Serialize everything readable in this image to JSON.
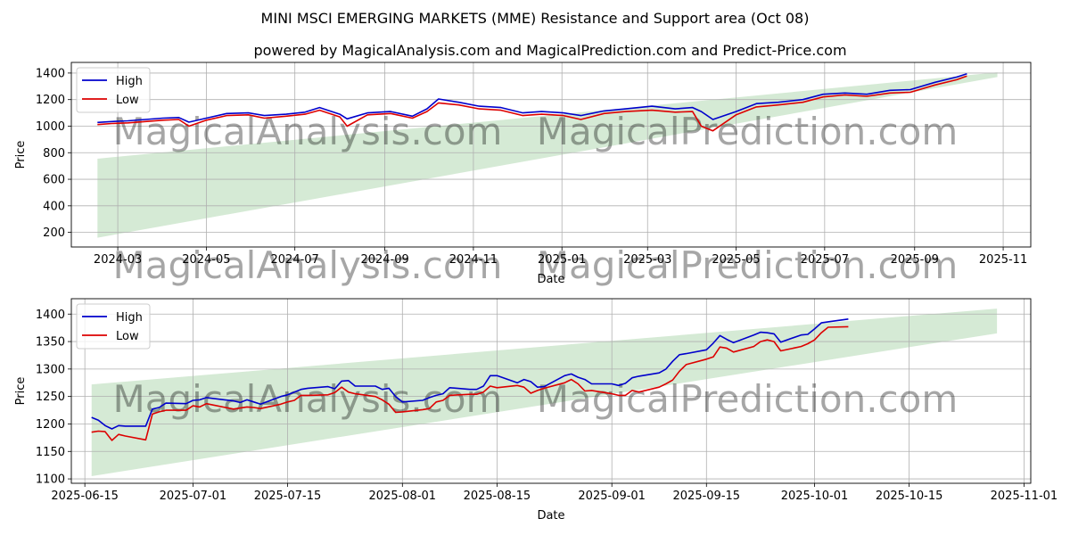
{
  "title": "MINI MSCI EMERGING MARKETS (MME) Resistance and Support area (Oct 08)",
  "subtitle": "powered by MagicalAnalysis.com and MagicalPrediction.com and Predict-Price.com",
  "watermarks": [
    "MagicalAnalysis.com",
    "MagicalPrediction.com"
  ],
  "colors": {
    "high": "#0000cc",
    "low": "#dd0000",
    "band": "#d5ead5"
  },
  "chart_data": [
    {
      "type": "line",
      "xlabel": "Date",
      "ylabel": "Price",
      "xlim": [
        "2024-01-29",
        "2025-11-20"
      ],
      "ylim": [
        90,
        1480
      ],
      "xticks": [
        {
          "date": "2024-03-01",
          "label": "2024-03"
        },
        {
          "date": "2024-05-01",
          "label": "2024-05"
        },
        {
          "date": "2024-07-01",
          "label": "2024-07"
        },
        {
          "date": "2024-09-01",
          "label": "2024-09"
        },
        {
          "date": "2024-11-01",
          "label": "2024-11"
        },
        {
          "date": "2025-01-01",
          "label": "2025-01"
        },
        {
          "date": "2025-03-01",
          "label": "2025-03"
        },
        {
          "date": "2025-05-01",
          "label": "2025-05"
        },
        {
          "date": "2025-07-01",
          "label": "2025-07"
        },
        {
          "date": "2025-09-01",
          "label": "2025-09"
        },
        {
          "date": "2025-11-01",
          "label": "2025-11"
        }
      ],
      "yticks": [
        200,
        400,
        600,
        800,
        1000,
        1200,
        1400
      ],
      "grid": true,
      "legend": "upper left",
      "band": {
        "x": [
          "2024-02-16",
          "2025-10-28"
        ],
        "lower": [
          160,
          1370
        ],
        "upper": [
          755,
          1405
        ]
      },
      "series": [
        {
          "name": "High",
          "color": "#0000cc",
          "x": [
            "2024-02-16",
            "2024-02-26",
            "2024-03-08",
            "2024-03-20",
            "2024-04-01",
            "2024-04-12",
            "2024-04-19",
            "2024-05-01",
            "2024-05-15",
            "2024-05-30",
            "2024-06-10",
            "2024-06-25",
            "2024-07-08",
            "2024-07-18",
            "2024-08-01",
            "2024-08-06",
            "2024-08-20",
            "2024-09-05",
            "2024-09-20",
            "2024-09-30",
            "2024-10-08",
            "2024-10-22",
            "2024-11-05",
            "2024-11-20",
            "2024-12-05",
            "2024-12-18",
            "2025-01-02",
            "2025-01-14",
            "2025-01-30",
            "2025-02-14",
            "2025-03-04",
            "2025-03-20",
            "2025-04-01",
            "2025-04-07",
            "2025-04-15",
            "2025-05-01",
            "2025-05-15",
            "2025-05-30",
            "2025-06-16",
            "2025-06-30",
            "2025-07-15",
            "2025-07-30",
            "2025-08-15",
            "2025-08-29",
            "2025-09-15",
            "2025-09-30",
            "2025-10-07"
          ],
          "values": [
            1028,
            1035,
            1040,
            1050,
            1060,
            1065,
            1030,
            1060,
            1095,
            1100,
            1080,
            1090,
            1105,
            1140,
            1090,
            1055,
            1100,
            1110,
            1075,
            1130,
            1205,
            1180,
            1150,
            1140,
            1100,
            1110,
            1100,
            1080,
            1115,
            1130,
            1150,
            1130,
            1140,
            1110,
            1050,
            1110,
            1170,
            1180,
            1200,
            1240,
            1250,
            1240,
            1270,
            1275,
            1330,
            1370,
            1395
          ]
        },
        {
          "name": "Low",
          "color": "#dd0000",
          "x": [
            "2024-02-16",
            "2024-02-26",
            "2024-03-08",
            "2024-03-20",
            "2024-04-01",
            "2024-04-12",
            "2024-04-19",
            "2024-05-01",
            "2024-05-15",
            "2024-05-30",
            "2024-06-10",
            "2024-06-25",
            "2024-07-08",
            "2024-07-18",
            "2024-08-01",
            "2024-08-06",
            "2024-08-20",
            "2024-09-05",
            "2024-09-20",
            "2024-09-30",
            "2024-10-08",
            "2024-10-22",
            "2024-11-05",
            "2024-11-20",
            "2024-12-05",
            "2024-12-18",
            "2025-01-02",
            "2025-01-14",
            "2025-01-30",
            "2025-02-14",
            "2025-03-04",
            "2025-03-20",
            "2025-04-01",
            "2025-04-07",
            "2025-04-15",
            "2025-05-01",
            "2025-05-15",
            "2025-05-30",
            "2025-06-16",
            "2025-06-30",
            "2025-07-15",
            "2025-07-30",
            "2025-08-15",
            "2025-08-29",
            "2025-09-15",
            "2025-09-30",
            "2025-10-07"
          ],
          "values": [
            1012,
            1020,
            1025,
            1035,
            1045,
            1050,
            1000,
            1045,
            1080,
            1085,
            1060,
            1075,
            1090,
            1120,
            1070,
            1000,
            1085,
            1095,
            1060,
            1110,
            1175,
            1160,
            1130,
            1120,
            1080,
            1090,
            1080,
            1050,
            1095,
            1110,
            1120,
            1105,
            1110,
            1000,
            965,
            1085,
            1145,
            1160,
            1180,
            1220,
            1235,
            1225,
            1250,
            1255,
            1310,
            1350,
            1378
          ]
        }
      ]
    },
    {
      "type": "line",
      "xlabel": "Date",
      "ylabel": "Price",
      "xlim": [
        "2025-06-13",
        "2025-11-02"
      ],
      "ylim": [
        1092,
        1428
      ],
      "xticks": [
        {
          "date": "2025-06-15",
          "label": "2025-06-15"
        },
        {
          "date": "2025-07-01",
          "label": "2025-07-01"
        },
        {
          "date": "2025-07-15",
          "label": "2025-07-15"
        },
        {
          "date": "2025-08-01",
          "label": "2025-08-01"
        },
        {
          "date": "2025-08-15",
          "label": "2025-08-15"
        },
        {
          "date": "2025-09-01",
          "label": "2025-09-01"
        },
        {
          "date": "2025-09-15",
          "label": "2025-09-15"
        },
        {
          "date": "2025-10-01",
          "label": "2025-10-01"
        },
        {
          "date": "2025-10-15",
          "label": "2025-10-15"
        },
        {
          "date": "2025-11-01",
          "label": "2025-11-01"
        }
      ],
      "yticks": [
        1100,
        1150,
        1200,
        1250,
        1300,
        1350,
        1400
      ],
      "grid": true,
      "legend": "upper left",
      "band": {
        "x": [
          "2025-06-16",
          "2025-10-28"
        ],
        "lower": [
          1105,
          1365
        ],
        "upper": [
          1272,
          1410
        ]
      },
      "series": [
        {
          "name": "High",
          "color": "#0000cc",
          "x": [
            "2025-06-16",
            "2025-06-17",
            "2025-06-18",
            "2025-06-19",
            "2025-06-20",
            "2025-06-21",
            "2025-06-24",
            "2025-06-25",
            "2025-06-26",
            "2025-06-27",
            "2025-06-30",
            "2025-07-01",
            "2025-07-02",
            "2025-07-03",
            "2025-07-07",
            "2025-07-08",
            "2025-07-09",
            "2025-07-10",
            "2025-07-11",
            "2025-07-14",
            "2025-07-15",
            "2025-07-16",
            "2025-07-17",
            "2025-07-18",
            "2025-07-21",
            "2025-07-22",
            "2025-07-23",
            "2025-07-24",
            "2025-07-25",
            "2025-07-28",
            "2025-07-29",
            "2025-07-30",
            "2025-07-31",
            "2025-08-01",
            "2025-08-04",
            "2025-08-05",
            "2025-08-06",
            "2025-08-07",
            "2025-08-08",
            "2025-08-11",
            "2025-08-12",
            "2025-08-13",
            "2025-08-14",
            "2025-08-15",
            "2025-08-18",
            "2025-08-19",
            "2025-08-20",
            "2025-08-21",
            "2025-08-22",
            "2025-08-25",
            "2025-08-26",
            "2025-08-27",
            "2025-08-28",
            "2025-08-29",
            "2025-09-01",
            "2025-09-02",
            "2025-09-03",
            "2025-09-04",
            "2025-09-05",
            "2025-09-08",
            "2025-09-09",
            "2025-09-10",
            "2025-09-11",
            "2025-09-12",
            "2025-09-15",
            "2025-09-16",
            "2025-09-17",
            "2025-09-18",
            "2025-09-19",
            "2025-09-22",
            "2025-09-23",
            "2025-09-24",
            "2025-09-25",
            "2025-09-26",
            "2025-09-29",
            "2025-09-30",
            "2025-10-01",
            "2025-10-02",
            "2025-10-03",
            "2025-10-06"
          ],
          "values": [
            1212,
            1207,
            1197,
            1191,
            1197,
            1196,
            1196,
            1227,
            1230,
            1238,
            1237,
            1243,
            1244,
            1248,
            1242,
            1239,
            1244,
            1240,
            1236,
            1250,
            1253,
            1258,
            1263,
            1265,
            1268,
            1264,
            1278,
            1279,
            1269,
            1269,
            1263,
            1265,
            1250,
            1240,
            1243,
            1248,
            1252,
            1255,
            1266,
            1263,
            1263,
            1269,
            1288,
            1288,
            1275,
            1281,
            1277,
            1267,
            1268,
            1288,
            1291,
            1285,
            1281,
            1273,
            1273,
            1270,
            1274,
            1284,
            1287,
            1293,
            1300,
            1314,
            1326,
            1328,
            1335,
            1347,
            1361,
            1354,
            1348,
            1362,
            1367,
            1366,
            1364,
            1349,
            1362,
            1363,
            1373,
            1384,
            1386,
            1391
          ]
        },
        {
          "name": "Low",
          "color": "#dd0000",
          "x": [
            "2025-06-16",
            "2025-06-17",
            "2025-06-18",
            "2025-06-19",
            "2025-06-20",
            "2025-06-21",
            "2025-06-24",
            "2025-06-25",
            "2025-06-26",
            "2025-06-27",
            "2025-06-30",
            "2025-07-01",
            "2025-07-02",
            "2025-07-03",
            "2025-07-07",
            "2025-07-08",
            "2025-07-09",
            "2025-07-10",
            "2025-07-11",
            "2025-07-14",
            "2025-07-15",
            "2025-07-16",
            "2025-07-17",
            "2025-07-18",
            "2025-07-21",
            "2025-07-22",
            "2025-07-23",
            "2025-07-24",
            "2025-07-25",
            "2025-07-28",
            "2025-07-29",
            "2025-07-30",
            "2025-07-31",
            "2025-08-01",
            "2025-08-04",
            "2025-08-05",
            "2025-08-06",
            "2025-08-07",
            "2025-08-08",
            "2025-08-11",
            "2025-08-12",
            "2025-08-13",
            "2025-08-14",
            "2025-08-15",
            "2025-08-18",
            "2025-08-19",
            "2025-08-20",
            "2025-08-21",
            "2025-08-22",
            "2025-08-25",
            "2025-08-26",
            "2025-08-27",
            "2025-08-28",
            "2025-08-29",
            "2025-09-01",
            "2025-09-02",
            "2025-09-03",
            "2025-09-04",
            "2025-09-05",
            "2025-09-08",
            "2025-09-09",
            "2025-09-10",
            "2025-09-11",
            "2025-09-12",
            "2025-09-15",
            "2025-09-16",
            "2025-09-17",
            "2025-09-18",
            "2025-09-19",
            "2025-09-22",
            "2025-09-23",
            "2025-09-24",
            "2025-09-25",
            "2025-09-26",
            "2025-09-29",
            "2025-09-30",
            "2025-10-01",
            "2025-10-02",
            "2025-10-03",
            "2025-10-06"
          ],
          "values": [
            1185,
            1187,
            1186,
            1170,
            1181,
            1178,
            1171,
            1218,
            1222,
            1225,
            1225,
            1233,
            1231,
            1237,
            1227,
            1229,
            1231,
            1230,
            1228,
            1236,
            1240,
            1243,
            1252,
            1252,
            1253,
            1257,
            1267,
            1258,
            1255,
            1250,
            1244,
            1236,
            1221,
            1222,
            1226,
            1228,
            1240,
            1243,
            1252,
            1254,
            1254,
            1258,
            1269,
            1266,
            1270,
            1267,
            1256,
            1261,
            1265,
            1275,
            1281,
            1273,
            1260,
            1261,
            1255,
            1252,
            1252,
            1261,
            1258,
            1267,
            1273,
            1280,
            1296,
            1308,
            1318,
            1322,
            1340,
            1338,
            1331,
            1341,
            1350,
            1353,
            1350,
            1333,
            1341,
            1346,
            1353,
            1366,
            1376,
            1377
          ]
        }
      ]
    }
  ]
}
